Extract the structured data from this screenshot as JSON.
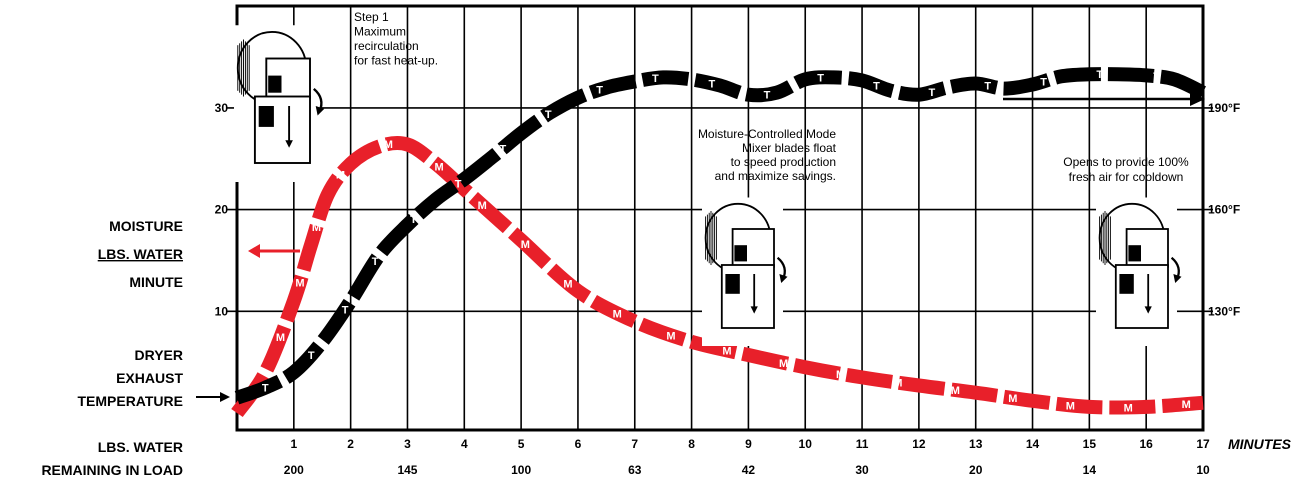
{
  "chart_data": {
    "type": "line",
    "xlabel": "MINUTES",
    "x_ticks": [
      "1",
      "2",
      "3",
      "4",
      "5",
      "6",
      "7",
      "8",
      "9",
      "10",
      "11",
      "12",
      "13",
      "14",
      "15",
      "16",
      "17"
    ],
    "xlim": [
      0,
      17
    ],
    "ylim": [
      0,
      36
    ],
    "left_ticks": [
      "10",
      "20",
      "30"
    ],
    "right_ticks": [
      "130°F",
      "160°F",
      "190°F"
    ],
    "left_axis_label": [
      "MOISTURE",
      "LBS. WATER",
      "MINUTE"
    ],
    "temp_axis_label": [
      "DRYER",
      "EXHAUST",
      "TEMPERATURE"
    ],
    "remaining_label": [
      "LBS. WATER",
      "REMAINING IN LOAD"
    ],
    "remaining_values": [
      "200",
      "145",
      "100",
      "63",
      "42",
      "30",
      "20",
      "14",
      "10"
    ],
    "grid": true,
    "annotations": [
      [
        "Step 1",
        "Maximum",
        "recirculation",
        "for fast heat-up."
      ],
      [
        "Moisture-Controlled Mode",
        "Mixer blades float",
        "to speed production",
        "and maximize savings."
      ],
      [
        "Opens to provide 100%",
        "fresh air for cooldown"
      ]
    ],
    "series": [
      {
        "marker": "M",
        "color": "#e8202a",
        "x": [
          0,
          0.5,
          1,
          1.3,
          1.6,
          2,
          2.5,
          3,
          3.5,
          4,
          4.5,
          5,
          6,
          7,
          8,
          9,
          10,
          11,
          12,
          13,
          14,
          15,
          16,
          17
        ],
        "y": [
          0,
          4,
          11,
          16.5,
          21.5,
          24.5,
          26.2,
          26.4,
          24.5,
          22,
          19.5,
          17,
          12,
          9,
          7,
          5.7,
          4.5,
          3.5,
          2.7,
          2,
          1.2,
          0.6,
          0.6,
          1
        ]
      },
      {
        "marker": "T",
        "color": "#000000",
        "x": [
          0,
          0.5,
          1,
          1.5,
          2,
          2.5,
          3,
          3.5,
          4,
          4.5,
          5,
          5.5,
          6,
          6.5,
          7,
          7.5,
          8,
          8.5,
          9,
          9.5,
          10,
          10.5,
          11,
          11.5,
          12,
          12.5,
          13,
          13.5,
          14,
          14.5,
          15,
          15.5,
          16,
          16.5,
          17
        ],
        "y": [
          1.5,
          2.5,
          4,
          7,
          11,
          15.5,
          18.5,
          21,
          23,
          25.2,
          27.5,
          29.5,
          31,
          32,
          32.6,
          33,
          32.8,
          32.2,
          31.3,
          31.5,
          32.8,
          33,
          32.7,
          31.7,
          31.3,
          32,
          32.4,
          31.9,
          32.3,
          33.1,
          33.3,
          33.3,
          33.2,
          32.8,
          31.5
        ]
      }
    ]
  }
}
